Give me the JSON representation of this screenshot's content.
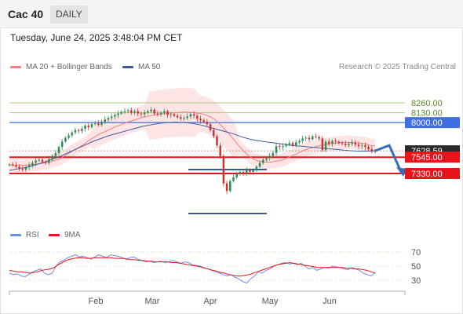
{
  "header": {
    "title": "Cac 40",
    "timeframe": "DAILY"
  },
  "timestamp": "Tuesday, June 24, 2025 3:48:04 PM CET",
  "legend": {
    "bollinger_label": "MA 20 + Bollinger Bands",
    "ma50_label": "MA 50",
    "credit": "Research © 2025 Trading Central"
  },
  "rsi_legend": {
    "rsi_label": "RSI",
    "ma_label": "9MA"
  },
  "colors": {
    "up": "#2e8b57",
    "down": "#d32f2f",
    "ma20": "#f08080",
    "band_fill": "#fde0e0",
    "ma50": "#3a5a9a",
    "resistance_green": "#a9c97a",
    "level_blue": "#3f6fe0",
    "support_red": "#e8141b",
    "arrow": "#3a6cb8",
    "rsi": "#6a8fe8",
    "rsi_ma": "#e8141b",
    "price_badge": "#2b2b2b"
  },
  "chart_data": [
    {
      "type": "candlestick",
      "title": "Cac 40",
      "xlabel": "",
      "ylabel": "",
      "x_tick_labels": [
        "Feb",
        "Mar",
        "Apr",
        "May",
        "Jun"
      ],
      "ylim": [
        7000,
        8500
      ],
      "grid": false,
      "levels": [
        {
          "value": 8260.0,
          "label": "8260.00",
          "kind": "resistance"
        },
        {
          "value": 8130.0,
          "label": "8130.00",
          "kind": "resistance"
        },
        {
          "value": 8000.0,
          "label": "8000.00",
          "kind": "pivot"
        },
        {
          "value": 7628.59,
          "label": "7628.59",
          "kind": "last"
        },
        {
          "value": 7545.0,
          "label": "7545.00",
          "kind": "support"
        },
        {
          "value": 7330.0,
          "label": "7330.00",
          "kind": "support"
        }
      ],
      "closes": [
        7450,
        7440,
        7420,
        7390,
        7380,
        7410,
        7440,
        7470,
        7500,
        7510,
        7480,
        7470,
        7520,
        7560,
        7600,
        7680,
        7750,
        7800,
        7830,
        7870,
        7900,
        7890,
        7920,
        7960,
        7940,
        7980,
        7990,
        7970,
        8010,
        8040,
        8060,
        8080,
        8100,
        8120,
        8140,
        8150,
        8160,
        8130,
        8150,
        8120,
        8110,
        8130,
        8150,
        8170,
        8120,
        8110,
        8130,
        8150,
        8100,
        8110,
        8090,
        8070,
        8050,
        8060,
        8080,
        8110,
        8090,
        8050,
        8030,
        8010,
        7980,
        7900,
        7820,
        7700,
        7560,
        7200,
        7100,
        7230,
        7280,
        7330,
        7350,
        7330,
        7380,
        7350,
        7370,
        7420,
        7470,
        7510,
        7530,
        7560,
        7600,
        7690,
        7680,
        7690,
        7710,
        7730,
        7700,
        7740,
        7760,
        7790,
        7800,
        7780,
        7820,
        7810,
        7790,
        7640,
        7750,
        7720,
        7760,
        7750,
        7730,
        7720,
        7700,
        7720,
        7740,
        7710,
        7690,
        7700,
        7680,
        7650,
        7620,
        7628.59
      ],
      "ma20_approx": [
        7440,
        7440,
        7440,
        7440,
        7445,
        7450,
        7460,
        7470,
        7480,
        7500,
        7520,
        7560,
        7600,
        7640,
        7680,
        7720,
        7770,
        7810,
        7850,
        7880,
        7910,
        7940,
        7965,
        7990,
        8015,
        8035,
        8055,
        8075,
        8090,
        8100,
        8110,
        8120,
        8125,
        8130,
        8135,
        8140,
        8135,
        8130,
        8120,
        8105,
        8080,
        8040,
        7980,
        7910,
        7840,
        7760,
        7680,
        7610,
        7550,
        7510,
        7490,
        7480,
        7480,
        7490,
        7500,
        7520,
        7550,
        7580,
        7610,
        7640,
        7660,
        7680,
        7700,
        7710,
        7720,
        7730,
        7735,
        7740,
        7740,
        7735,
        7730,
        7720,
        7700,
        7690
      ],
      "ma50_approx": [
        7370,
        7390,
        7410,
        7440,
        7470,
        7510,
        7550,
        7600,
        7650,
        7700,
        7750,
        7790,
        7830,
        7860,
        7890,
        7920,
        7950,
        7970,
        7990,
        8000,
        8005,
        8000,
        7990,
        7970,
        7940,
        7910,
        7880,
        7850,
        7810,
        7780,
        7760,
        7745,
        7730,
        7715,
        7700,
        7690,
        7680,
        7670,
        7660,
        7650,
        7640,
        7630,
        7625,
        7625,
        7630
      ],
      "projection": [
        7628.59,
        7700,
        7330
      ]
    },
    {
      "type": "line",
      "title": "RSI",
      "ylim": [
        20,
        80
      ],
      "y_ticks": [
        "70",
        "50",
        "30"
      ],
      "series": [
        {
          "name": "RSI",
          "values": [
            40,
            38,
            39,
            36,
            35,
            38,
            42,
            44,
            46,
            40,
            38,
            40,
            50,
            56,
            58,
            62,
            64,
            66,
            63,
            64,
            62,
            60,
            63,
            66,
            64,
            62,
            66,
            65,
            64,
            62,
            60,
            62,
            63,
            60,
            58,
            56,
            57,
            55,
            56,
            57,
            55,
            56,
            58,
            56,
            54,
            56,
            55,
            52,
            51,
            50,
            48,
            46,
            44,
            42,
            40,
            38,
            36,
            38,
            34,
            32,
            28,
            26,
            32,
            36,
            42,
            40,
            44,
            46,
            50,
            52,
            54,
            55,
            53,
            54,
            52,
            54,
            50,
            46,
            48,
            44,
            46,
            48,
            47,
            50,
            49,
            48,
            46,
            45,
            48,
            46,
            44,
            40,
            38,
            36,
            41
          ]
        },
        {
          "name": "9MA",
          "values": [
            44,
            43,
            42,
            42,
            41,
            40,
            41,
            42,
            44,
            45,
            46,
            48,
            52,
            55,
            58,
            60,
            61,
            62,
            62,
            61,
            61,
            62,
            62,
            62,
            62,
            62,
            61,
            61,
            61,
            60,
            59,
            59,
            58,
            58,
            57,
            57,
            56,
            56,
            56,
            56,
            55,
            55,
            54,
            53,
            52,
            51,
            50,
            49,
            47,
            46,
            44,
            43,
            41,
            40,
            38,
            37,
            36,
            36,
            37,
            38,
            40,
            42,
            44,
            46,
            48,
            50,
            52,
            53,
            54,
            55,
            54,
            53,
            52,
            51,
            50,
            49,
            48,
            48,
            48,
            48,
            48,
            48,
            48,
            47,
            47,
            46,
            46,
            45,
            44,
            42,
            40
          ]
        }
      ]
    }
  ]
}
